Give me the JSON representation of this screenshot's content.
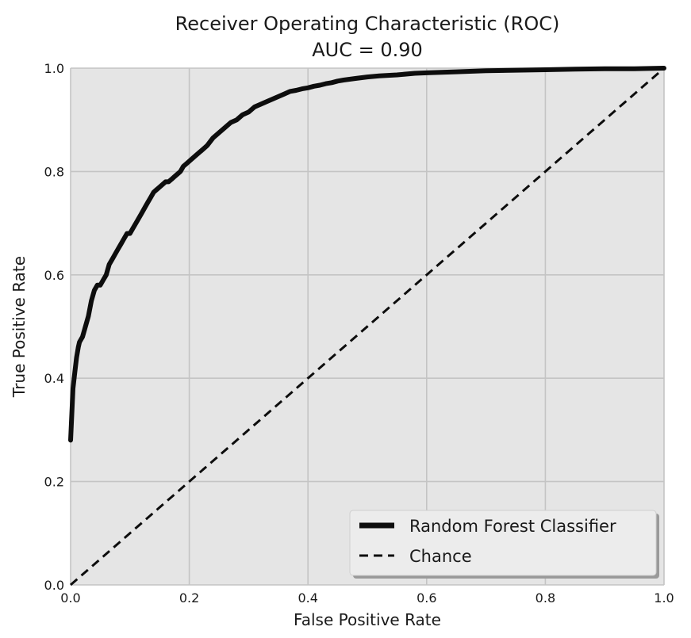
{
  "chart_data": {
    "type": "line",
    "title": "Receiver Operating Characteristic (ROC)",
    "subtitle": "AUC = 0.90",
    "xlabel": "False Positive Rate",
    "ylabel": "True Positive Rate",
    "xlim": [
      0.0,
      1.0
    ],
    "ylim": [
      0.0,
      1.0
    ],
    "xticks": [
      0.0,
      0.2,
      0.4,
      0.6,
      0.8,
      1.0
    ],
    "yticks": [
      0.0,
      0.2,
      0.4,
      0.6,
      0.8,
      1.0
    ],
    "xtick_labels": [
      "0.0",
      "0.2",
      "0.4",
      "0.6",
      "0.8",
      "1.0"
    ],
    "ytick_labels": [
      "0.0",
      "0.2",
      "0.4",
      "0.6",
      "0.8",
      "1.0"
    ],
    "grid": true,
    "legend_position": "bottom-right",
    "colors": {
      "plot_background": "#e5e5e5",
      "grid": "#c4c4c4",
      "series": "#0d0d0d"
    },
    "series": [
      {
        "name": "Random Forest Classifier",
        "style": "solid",
        "x": [
          0.0,
          0.002,
          0.004,
          0.007,
          0.01,
          0.013,
          0.015,
          0.02,
          0.025,
          0.03,
          0.035,
          0.04,
          0.045,
          0.05,
          0.055,
          0.06,
          0.065,
          0.07,
          0.075,
          0.08,
          0.085,
          0.09,
          0.095,
          0.1,
          0.105,
          0.11,
          0.12,
          0.125,
          0.13,
          0.135,
          0.14,
          0.145,
          0.15,
          0.155,
          0.16,
          0.165,
          0.17,
          0.175,
          0.18,
          0.185,
          0.19,
          0.195,
          0.2,
          0.21,
          0.22,
          0.23,
          0.24,
          0.25,
          0.26,
          0.27,
          0.28,
          0.29,
          0.3,
          0.31,
          0.32,
          0.33,
          0.34,
          0.35,
          0.36,
          0.37,
          0.38,
          0.39,
          0.4,
          0.41,
          0.42,
          0.43,
          0.44,
          0.45,
          0.46,
          0.48,
          0.5,
          0.52,
          0.55,
          0.58,
          0.6,
          0.65,
          0.7,
          0.75,
          0.8,
          0.85,
          0.9,
          0.95,
          1.0
        ],
        "y": [
          0.28,
          0.33,
          0.38,
          0.41,
          0.44,
          0.46,
          0.47,
          0.48,
          0.5,
          0.52,
          0.55,
          0.57,
          0.58,
          0.58,
          0.59,
          0.6,
          0.62,
          0.63,
          0.64,
          0.65,
          0.66,
          0.67,
          0.68,
          0.68,
          0.69,
          0.7,
          0.72,
          0.73,
          0.74,
          0.75,
          0.76,
          0.765,
          0.77,
          0.775,
          0.78,
          0.78,
          0.785,
          0.79,
          0.795,
          0.8,
          0.81,
          0.815,
          0.82,
          0.83,
          0.84,
          0.85,
          0.865,
          0.875,
          0.885,
          0.895,
          0.9,
          0.91,
          0.915,
          0.925,
          0.93,
          0.935,
          0.94,
          0.945,
          0.95,
          0.955,
          0.957,
          0.96,
          0.962,
          0.965,
          0.967,
          0.97,
          0.972,
          0.975,
          0.977,
          0.98,
          0.983,
          0.985,
          0.987,
          0.99,
          0.991,
          0.993,
          0.995,
          0.996,
          0.997,
          0.998,
          0.999,
          0.999,
          1.0
        ]
      },
      {
        "name": "Chance",
        "style": "dashed",
        "x": [
          0.0,
          1.0
        ],
        "y": [
          0.0,
          1.0
        ]
      }
    ]
  }
}
